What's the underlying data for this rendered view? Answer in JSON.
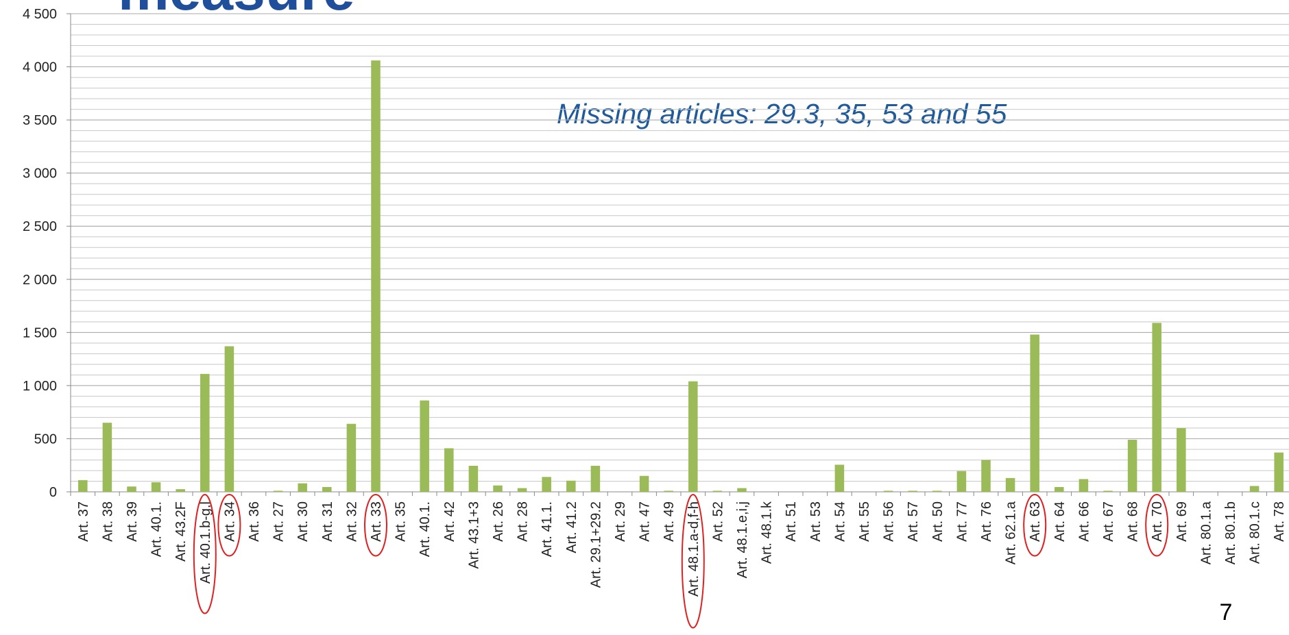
{
  "chart_data": {
    "type": "bar",
    "title": "measure",
    "annotation": "Missing articles: 29.3, 35, 53 and 55",
    "page_number": "7",
    "color": "#9bbb59",
    "highlight_color": "#e02020",
    "highlighted": [
      5,
      6,
      12,
      25,
      39,
      44
    ],
    "categories": [
      "Art. 37",
      "Art. 38",
      "Art. 39",
      "Art. 40.1.",
      "Art. 43.2F",
      "Art. 40.1.b-g,l",
      "Art. 34",
      "Art. 36",
      "Art. 27",
      "Art. 30",
      "Art. 31",
      "Art. 32",
      "Art. 33",
      "Art. 35",
      "Art. 40.1.",
      "Art. 42",
      "Art. 43.1+3",
      "Art. 26",
      "Art. 28",
      "Art. 41.1.",
      "Art. 41.2",
      "Art. 29.1+29.2",
      "Art. 29",
      "Art. 47",
      "Art. 49",
      "Art. 48.1.a-d,f-h",
      "Art. 52",
      "Art. 48.1.e,i,j",
      "Art. 48.1.k",
      "Art. 51",
      "Art. 53",
      "Art. 54",
      "Art. 55",
      "Art. 56",
      "Art. 57",
      "Art. 50",
      "Art. 77",
      "Art. 76",
      "Art. 62.1.a",
      "Art. 63",
      "Art. 64",
      "Art. 66",
      "Art. 67",
      "Art. 68",
      "Art. 70",
      "Art. 69",
      "Art. 80.1.a",
      "Art. 80.1.b",
      "Art. 80.1.c",
      "Art. 78"
    ],
    "values": [
      110,
      650,
      50,
      90,
      25,
      1110,
      1370,
      0,
      10,
      80,
      45,
      640,
      4060,
      0,
      860,
      410,
      245,
      60,
      35,
      140,
      105,
      245,
      0,
      150,
      10,
      1040,
      10,
      35,
      0,
      0,
      0,
      255,
      0,
      10,
      10,
      10,
      195,
      300,
      130,
      1480,
      45,
      120,
      10,
      490,
      1590,
      600,
      0,
      0,
      55,
      370
    ],
    "ylim": [
      0,
      4500
    ],
    "yticks": [
      0,
      500,
      {
        "value": 1000,
        "label": "1 000"
      },
      {
        "value": 1500,
        "label": "1 500"
      },
      {
        "value": 2000,
        "label": "2 000"
      },
      {
        "value": 2500,
        "label": "2 500"
      },
      {
        "value": 3000,
        "label": "3 000"
      },
      {
        "value": 3500,
        "label": "3 500"
      },
      {
        "value": 4000,
        "label": "4 000"
      },
      {
        "value": 4500,
        "label": "4 500"
      }
    ],
    "grid": true,
    "minor_grid_step": 100
  }
}
